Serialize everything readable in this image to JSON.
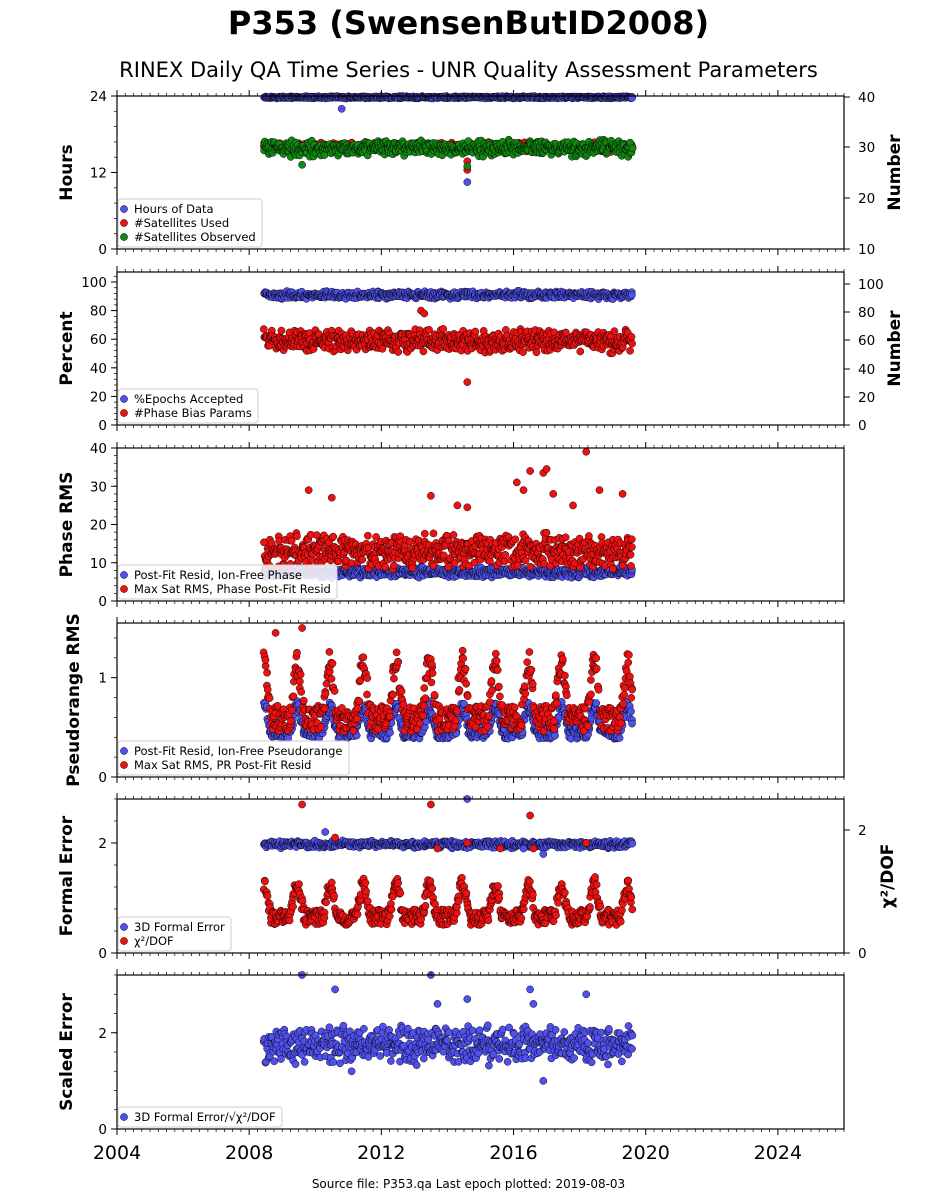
{
  "header": {
    "title": "P353 (SwensenButID2008)",
    "subtitle": "RINEX Daily QA Time Series - UNR Quality Assessment Parameters"
  },
  "footer": {
    "source": "Source file: P353.qa Last epoch plotted: 2019-08-03"
  },
  "colors": {
    "blue": "#5050ee",
    "red": "#ee1111",
    "green": "#118811",
    "navy": "#15154a"
  },
  "chart_data": [
    {
      "type": "scatter",
      "ylabel": "Hours",
      "ylabel_right": "Number",
      "xlim": [
        2004,
        2026
      ],
      "ylim": [
        0,
        24
      ],
      "ylim_right": [
        10,
        40
      ],
      "yticks": [
        "0",
        "12",
        "24"
      ],
      "yticks_right": [
        "10",
        "20",
        "30",
        "40"
      ],
      "legend_position": "lower-left",
      "series": [
        {
          "name": "Hours of Data",
          "color": "blue",
          "axis": "left",
          "band": [
            23.6,
            24.0
          ],
          "outliers": [
            [
              2010.8,
              22.0
            ],
            [
              2014.6,
              10.5
            ]
          ]
        },
        {
          "name": "#Satellites Used",
          "color": "red",
          "axis": "right",
          "band": [
            29.0,
            31.0
          ],
          "outliers": [
            [
              2009.7,
              30.2
            ],
            [
              2014.6,
              27.2
            ],
            [
              2014.6,
              25.5
            ]
          ]
        },
        {
          "name": "#Satellites Observed",
          "color": "green",
          "axis": "right",
          "band": [
            28.0,
            31.5
          ],
          "outliers": [
            [
              2009.6,
              26.5
            ],
            [
              2014.6,
              26.2
            ]
          ]
        }
      ]
    },
    {
      "type": "scatter",
      "ylabel": "Percent",
      "ylabel_right": "Number",
      "xlim": [
        2004,
        2026
      ],
      "ylim": [
        0,
        107
      ],
      "yticks": [
        "0",
        "20",
        "40",
        "60",
        "80",
        "100"
      ],
      "yticks_right": [
        "0",
        "20",
        "40",
        "60",
        "80",
        "100"
      ],
      "legend_position": "lower-left",
      "series": [
        {
          "name": "%Epochs Accepted",
          "color": "blue",
          "axis": "left",
          "band": [
            88,
            94
          ]
        },
        {
          "name": "#Phase Bias Params",
          "color": "red",
          "axis": "right",
          "band": [
            50,
            68
          ],
          "outliers": [
            [
              2014.6,
              30
            ],
            [
              2013.2,
              80
            ],
            [
              2013.3,
              78
            ]
          ]
        }
      ]
    },
    {
      "type": "scatter",
      "ylabel": "Phase RMS",
      "xlim": [
        2004,
        2026
      ],
      "ylim": [
        0,
        40
      ],
      "yticks": [
        "0",
        "10",
        "20",
        "30",
        "40"
      ],
      "legend_position": "lower-left",
      "series": [
        {
          "name": "Post-Fit Resid, Ion-Free Phase",
          "color": "blue",
          "band": [
            6,
            9
          ]
        },
        {
          "name": "Max Sat RMS, Phase Post-Fit Resid",
          "color": "red",
          "band": [
            8,
            18
          ],
          "outliers": [
            [
              2009.8,
              29
            ],
            [
              2010.5,
              27
            ],
            [
              2013.5,
              27.5
            ],
            [
              2014.3,
              25
            ],
            [
              2014.6,
              24.5
            ],
            [
              2016.1,
              31
            ],
            [
              2016.5,
              34
            ],
            [
              2016.9,
              33.5
            ],
            [
              2017.0,
              34.5
            ],
            [
              2017.2,
              28
            ],
            [
              2018.2,
              39
            ],
            [
              2018.6,
              29
            ],
            [
              2019.3,
              28
            ],
            [
              2016.3,
              29
            ],
            [
              2017.8,
              25
            ]
          ]
        }
      ]
    },
    {
      "type": "scatter",
      "ylabel": "Pseudorange RMS",
      "xlim": [
        2004,
        2026
      ],
      "ylim": [
        0,
        1.55
      ],
      "yticks": [
        "0",
        "1"
      ],
      "legend_position": "lower-left",
      "series": [
        {
          "name": "Post-Fit Resid, Ion-Free Pseudorange",
          "color": "blue",
          "seasonal": [
            0.38,
            0.82
          ]
        },
        {
          "name": "Max Sat RMS, PR Post-Fit Resid",
          "color": "red",
          "seasonal": [
            0.45,
            1.38
          ],
          "outliers": [
            [
              2009.6,
              1.5
            ],
            [
              2008.8,
              1.45
            ]
          ]
        }
      ]
    },
    {
      "type": "scatter",
      "ylabel": "Formal Error",
      "ylabel_right": "χ²/DOF",
      "xlim": [
        2004,
        2026
      ],
      "ylim": [
        0,
        2.8
      ],
      "yticks": [
        "0",
        "2"
      ],
      "yticks_right": [
        "0",
        "2"
      ],
      "legend_position": "lower-left",
      "series": [
        {
          "name": "3D Formal Error",
          "color": "blue",
          "band": [
            1.9,
            2.05
          ],
          "outliers": [
            [
              2010.3,
              2.2
            ],
            [
              2014.6,
              2.8
            ],
            [
              2016.9,
              1.8
            ],
            [
              2016.3,
              1.9
            ]
          ]
        },
        {
          "name": "χ²/DOF",
          "color": "red",
          "axis": "right",
          "seasonal": [
            0.5,
            1.5
          ],
          "outliers": [
            [
              2009.6,
              2.7
            ],
            [
              2013.5,
              2.7
            ],
            [
              2016.5,
              2.5
            ],
            [
              2010.6,
              2.1
            ],
            [
              2013.7,
              1.9
            ],
            [
              2014.6,
              2.0
            ],
            [
              2015.6,
              1.9
            ],
            [
              2016.6,
              1.9
            ],
            [
              2018.2,
              2.0
            ]
          ]
        }
      ]
    },
    {
      "type": "scatter",
      "ylabel": "Scaled Error",
      "xlim": [
        2004,
        2026
      ],
      "ylim": [
        0,
        3.2
      ],
      "yticks": [
        "0",
        "2"
      ],
      "xticks": [
        "2004",
        "2008",
        "2012",
        "2016",
        "2020",
        "2024"
      ],
      "legend_position": "lower-left",
      "series": [
        {
          "name": "3D Formal Error/√χ²/DOF",
          "color": "blue",
          "band": [
            1.3,
            2.2
          ],
          "outliers": [
            [
              2009.6,
              3.2
            ],
            [
              2010.6,
              2.9
            ],
            [
              2013.5,
              3.2
            ],
            [
              2013.7,
              2.6
            ],
            [
              2014.6,
              2.7
            ],
            [
              2016.5,
              2.9
            ],
            [
              2016.6,
              2.6
            ],
            [
              2018.2,
              2.8
            ],
            [
              2016.9,
              1.0
            ],
            [
              2011.1,
              1.2
            ]
          ]
        }
      ]
    }
  ]
}
